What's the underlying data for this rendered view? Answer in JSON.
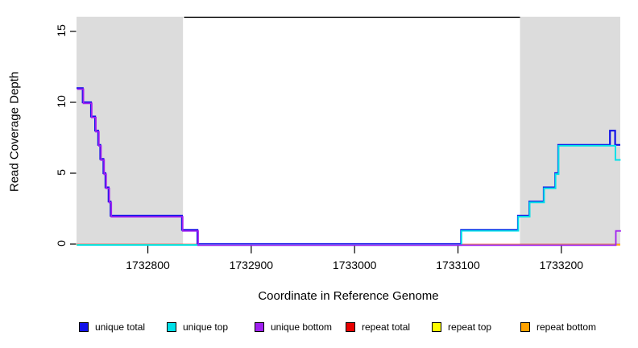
{
  "figure": {
    "background": "#ffffff"
  },
  "y_axis": {
    "label": "Read Coverage Depth",
    "ticks": [
      0,
      5,
      10,
      15
    ],
    "range": [
      0,
      16
    ]
  },
  "x_axis": {
    "label": "Coordinate in Reference Genome",
    "ticks": [
      1732800,
      1732900,
      1733000,
      1733100,
      1733200
    ],
    "range": [
      1732731,
      1733257
    ]
  },
  "colors": {
    "unique_total": "#1212E8",
    "unique_top": "#00E0E8",
    "unique_bottom": "#A020F0",
    "repeat_total": "#E80000",
    "repeat_top": "#FCFC00",
    "repeat_bottom": "#FFA200",
    "shaded_region": "#DCDCDC",
    "annotation_line": "#000000"
  },
  "legend": [
    {
      "label": "unique total",
      "color": "#1212E8"
    },
    {
      "label": "unique top",
      "color": "#00E0E8"
    },
    {
      "label": "unique bottom",
      "color": "#A020F0"
    },
    {
      "label": "repeat total",
      "color": "#E80000"
    },
    {
      "label": "repeat top",
      "color": "#FCFC00"
    },
    {
      "label": "repeat bottom",
      "color": "#FFA200"
    }
  ],
  "chart_data": {
    "type": "line",
    "title": "",
    "xlabel": "Coordinate in Reference Genome",
    "ylabel": "Read Coverage Depth",
    "xlim": [
      1732731,
      1733257
    ],
    "ylim": [
      0,
      16
    ],
    "grid": false,
    "legend_position": "bottom",
    "shaded_regions": [
      {
        "x1": 1732731,
        "x2": 1732834
      },
      {
        "x1": 1733160,
        "x2": 1733257
      }
    ],
    "top_annotation_segment": {
      "x1": 1732835,
      "x2": 1733160,
      "y": 16
    },
    "series": [
      {
        "name": "repeat total",
        "step_points": [
          [
            1732731,
            0
          ],
          [
            1733257,
            0
          ]
        ]
      },
      {
        "name": "repeat top",
        "step_points": [
          [
            1732731,
            0
          ],
          [
            1733257,
            0
          ]
        ]
      },
      {
        "name": "repeat bottom",
        "step_points": [
          [
            1732731,
            0
          ],
          [
            1733257,
            0
          ]
        ]
      },
      {
        "name": "unique total",
        "step_points": [
          [
            1732731,
            11
          ],
          [
            1732737,
            10
          ],
          [
            1732745,
            9
          ],
          [
            1732749,
            8
          ],
          [
            1732752,
            7
          ],
          [
            1732754,
            6
          ],
          [
            1732757,
            5
          ],
          [
            1732759,
            4
          ],
          [
            1732762,
            3
          ],
          [
            1732764,
            2
          ],
          [
            1732833,
            1
          ],
          [
            1732848,
            0
          ],
          [
            1733103,
            1
          ],
          [
            1733158,
            2
          ],
          [
            1733169,
            3
          ],
          [
            1733183,
            4
          ],
          [
            1733194,
            5
          ],
          [
            1733197,
            7
          ],
          [
            1733247,
            8
          ],
          [
            1733252,
            7
          ],
          [
            1733257,
            7
          ]
        ]
      },
      {
        "name": "unique top",
        "step_points": [
          [
            1732731,
            0
          ],
          [
            1733103,
            1
          ],
          [
            1733158,
            2
          ],
          [
            1733169,
            3
          ],
          [
            1733183,
            4
          ],
          [
            1733194,
            5
          ],
          [
            1733197,
            7
          ],
          [
            1733252,
            6
          ],
          [
            1733257,
            6
          ]
        ]
      },
      {
        "name": "unique bottom",
        "step_points": [
          [
            1732731,
            11
          ],
          [
            1732737,
            10
          ],
          [
            1732745,
            9
          ],
          [
            1732749,
            8
          ],
          [
            1732752,
            7
          ],
          [
            1732754,
            6
          ],
          [
            1732757,
            5
          ],
          [
            1732759,
            4
          ],
          [
            1732762,
            3
          ],
          [
            1732764,
            2
          ],
          [
            1732833,
            1
          ],
          [
            1732848,
            0
          ],
          [
            1733252,
            1
          ],
          [
            1733257,
            1
          ]
        ]
      }
    ]
  }
}
